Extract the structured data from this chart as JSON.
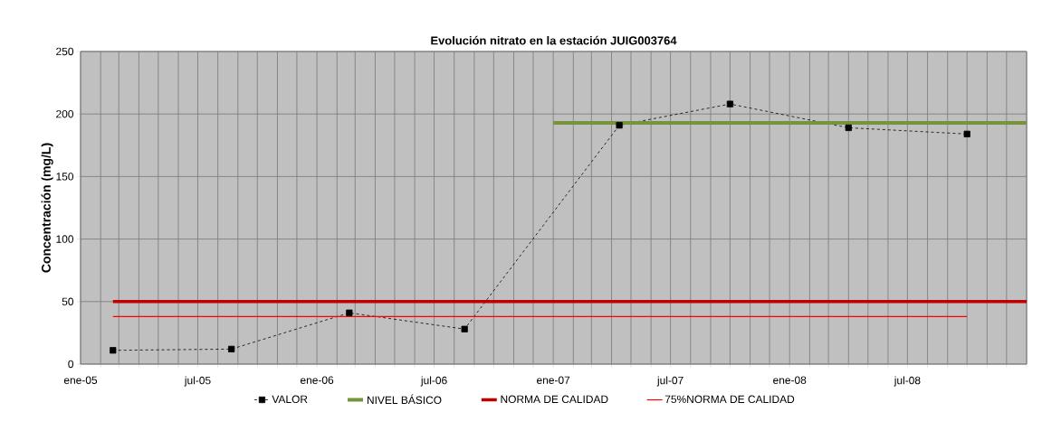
{
  "chart_data": {
    "type": "line",
    "title": "Evolución nitrato en la estación JUIG003764",
    "ylabel": "Concentración (mg/L)",
    "xlim": [
      "2005-01",
      "2009-01"
    ],
    "ylim": [
      0,
      250
    ],
    "yticks": [
      0,
      50,
      100,
      150,
      200,
      250
    ],
    "xticks": [
      {
        "value": "2005-01",
        "label": "ene-05"
      },
      {
        "value": "2005-02",
        "label": null
      },
      {
        "value": "2005-03",
        "label": null
      },
      {
        "value": "2005-04",
        "label": null
      },
      {
        "value": "2005-05",
        "label": null
      },
      {
        "value": "2005-06",
        "label": null
      },
      {
        "value": "2005-07",
        "label": "jul-05"
      },
      {
        "value": "2005-08",
        "label": null
      },
      {
        "value": "2005-09",
        "label": null
      },
      {
        "value": "2005-10",
        "label": null
      },
      {
        "value": "2005-11",
        "label": null
      },
      {
        "value": "2005-12",
        "label": null
      },
      {
        "value": "2006-01",
        "label": "ene-06"
      },
      {
        "value": "2006-02",
        "label": null
      },
      {
        "value": "2006-03",
        "label": null
      },
      {
        "value": "2006-04",
        "label": null
      },
      {
        "value": "2006-05",
        "label": null
      },
      {
        "value": "2006-06",
        "label": null
      },
      {
        "value": "2006-07",
        "label": "jul-06"
      },
      {
        "value": "2006-08",
        "label": null
      },
      {
        "value": "2006-09",
        "label": null
      },
      {
        "value": "2006-10",
        "label": null
      },
      {
        "value": "2006-11",
        "label": null
      },
      {
        "value": "2006-12",
        "label": null
      },
      {
        "value": "2007-01",
        "label": "ene-07"
      },
      {
        "value": "2007-02",
        "label": null
      },
      {
        "value": "2007-03",
        "label": null
      },
      {
        "value": "2007-04",
        "label": null
      },
      {
        "value": "2007-05",
        "label": null
      },
      {
        "value": "2007-06",
        "label": null
      },
      {
        "value": "2007-07",
        "label": "jul-07"
      },
      {
        "value": "2007-08",
        "label": null
      },
      {
        "value": "2007-09",
        "label": null
      },
      {
        "value": "2007-10",
        "label": null
      },
      {
        "value": "2007-11",
        "label": null
      },
      {
        "value": "2007-12",
        "label": null
      },
      {
        "value": "2008-01",
        "label": "ene-08"
      },
      {
        "value": "2008-02",
        "label": null
      },
      {
        "value": "2008-03",
        "label": null
      },
      {
        "value": "2008-04",
        "label": null
      },
      {
        "value": "2008-05",
        "label": null
      },
      {
        "value": "2008-06",
        "label": null
      },
      {
        "value": "2008-07",
        "label": "jul-08"
      },
      {
        "value": "2008-08",
        "label": null
      },
      {
        "value": "2008-09",
        "label": null
      },
      {
        "value": "2008-10",
        "label": null
      },
      {
        "value": "2008-11",
        "label": null
      },
      {
        "value": "2008-12",
        "label": null
      },
      {
        "value": "2009-01",
        "label": null
      }
    ],
    "grid": true,
    "legend": "bottom",
    "series": [
      {
        "name": "VALOR",
        "color": "#000000",
        "marker": "square",
        "line_style": "dashed",
        "x": [
          "2005-02-20",
          "2005-08-22",
          "2006-02-20",
          "2006-08-17",
          "2007-04-13",
          "2007-10-01",
          "2008-04-01",
          "2008-10-01"
        ],
        "values": [
          11,
          12,
          41,
          28,
          191,
          208,
          189,
          184
        ]
      },
      {
        "name": "NIVEL BÁSICO",
        "color": "#77933c",
        "marker": "none",
        "line_style": "solid",
        "x": [
          "2007-01-01",
          "2009-01-01"
        ],
        "values": [
          193,
          193
        ]
      },
      {
        "name": "NORMA DE CALIDAD",
        "color": "#c00000",
        "marker": "none",
        "line_style": "solid",
        "x": [
          "2005-02-20",
          "2009-01-01"
        ],
        "values": [
          50,
          50
        ]
      },
      {
        "name": "75%NORMA DE CALIDAD",
        "color": "#ff0000",
        "marker": "none",
        "line_style": "solid",
        "x": [
          "2005-02-20",
          "2008-10-01"
        ],
        "values": [
          38,
          38
        ]
      }
    ]
  }
}
